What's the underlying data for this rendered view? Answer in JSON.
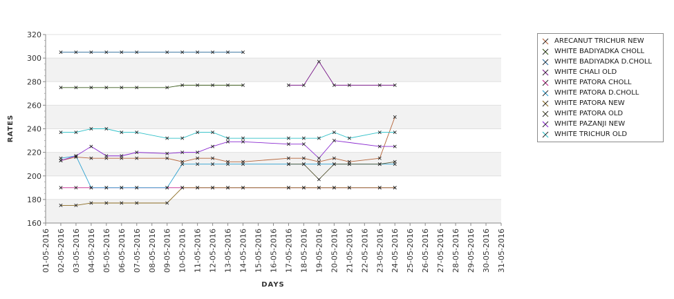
{
  "chart_data": {
    "type": "line",
    "title": "",
    "xlabel": "DAYS",
    "ylabel": "RATES",
    "ylim": [
      160,
      320
    ],
    "yticks": [
      160,
      180,
      200,
      220,
      240,
      260,
      280,
      300,
      320
    ],
    "grid": "horizontal alternating bands",
    "legend_position": "right",
    "categories": [
      "01-05-2016",
      "02-05-2016",
      "03-05-2016",
      "04-05-2016",
      "05-05-2016",
      "06-05-2016",
      "07-05-2016",
      "08-05-2016",
      "09-05-2016",
      "10-05-2016",
      "11-05-2016",
      "12-05-2016",
      "13-05-2016",
      "14-05-2016",
      "15-05-2016",
      "16-05-2016",
      "17-05-2016",
      "18-05-2016",
      "19-05-2016",
      "20-05-2016",
      "21-05-2016",
      "22-05-2016",
      "23-05-2016",
      "24-05-2016",
      "25-05-2016",
      "26-05-2016",
      "27-05-2016",
      "28-05-2016",
      "29-05-2016",
      "30-05-2016",
      "31-05-2016"
    ],
    "series": [
      {
        "name": "ARECANUT TRICHUR NEW",
        "color": "#b5653a",
        "values": [
          null,
          213,
          216,
          215,
          215,
          215,
          215,
          null,
          215,
          212,
          215,
          215,
          212,
          212,
          null,
          null,
          215,
          215,
          212,
          215,
          212,
          null,
          215,
          250,
          null,
          null,
          null,
          null,
          null,
          null,
          null
        ]
      },
      {
        "name": "WHITE BADIYADKA CHOLL",
        "color": "#3a5a1a",
        "values": [
          null,
          275,
          275,
          275,
          275,
          275,
          275,
          null,
          275,
          277,
          277,
          277,
          277,
          277,
          null,
          null,
          null,
          null,
          null,
          null,
          null,
          null,
          null,
          null,
          null,
          null,
          null,
          null,
          null,
          null,
          null
        ]
      },
      {
        "name": "WHITE BADIYADKA D.CHOLL",
        "color": "#2a6a9a",
        "values": [
          null,
          305,
          305,
          305,
          305,
          305,
          305,
          null,
          305,
          305,
          305,
          305,
          305,
          305,
          null,
          null,
          null,
          null,
          null,
          null,
          null,
          null,
          null,
          null,
          null,
          null,
          null,
          null,
          null,
          null,
          null
        ]
      },
      {
        "name": "WHITE CHALI OLD",
        "color": "#7a1a8a",
        "values": [
          null,
          null,
          null,
          null,
          null,
          null,
          null,
          null,
          null,
          null,
          null,
          null,
          null,
          null,
          null,
          null,
          277,
          277,
          297,
          277,
          277,
          null,
          277,
          277,
          null,
          null,
          null,
          null,
          null,
          null,
          null
        ]
      },
      {
        "name": "WHITE PATORA CHOLL",
        "color": "#c0208a",
        "values": [
          null,
          190,
          190,
          190,
          190,
          190,
          190,
          null,
          190,
          190,
          190,
          190,
          190,
          190,
          null,
          null,
          190,
          190,
          190,
          190,
          190,
          null,
          190,
          190,
          null,
          null,
          null,
          null,
          null,
          null,
          null
        ]
      },
      {
        "name": "WHITE PATORA D.CHOLL",
        "color": "#2aa0d0",
        "values": [
          null,
          215,
          217,
          190,
          190,
          190,
          190,
          null,
          190,
          210,
          210,
          210,
          210,
          210,
          null,
          null,
          210,
          210,
          210,
          210,
          210,
          null,
          210,
          210,
          null,
          null,
          null,
          null,
          null,
          null,
          null
        ]
      },
      {
        "name": "WHITE PATORA NEW",
        "color": "#8a6a20",
        "values": [
          null,
          175,
          175,
          177,
          177,
          177,
          177,
          null,
          177,
          190,
          190,
          190,
          190,
          190,
          null,
          null,
          190,
          190,
          190,
          190,
          190,
          null,
          190,
          190,
          null,
          null,
          null,
          null,
          null,
          null,
          null
        ]
      },
      {
        "name": "WHITE PATORA OLD",
        "color": "#555533",
        "values": [
          null,
          null,
          null,
          null,
          null,
          null,
          null,
          null,
          null,
          null,
          null,
          null,
          null,
          null,
          null,
          null,
          210,
          210,
          197,
          210,
          210,
          null,
          210,
          212,
          null,
          null,
          null,
          null,
          null,
          null,
          null
        ]
      },
      {
        "name": "WHITE PAZANJI NEW",
        "color": "#8a2ad0",
        "values": [
          null,
          213,
          217,
          225,
          217,
          217,
          220,
          null,
          219,
          220,
          220,
          225,
          229,
          229,
          null,
          null,
          227,
          227,
          215,
          230,
          null,
          null,
          225,
          225,
          null,
          null,
          null,
          null,
          null,
          null,
          null
        ]
      },
      {
        "name": "WHITE TRICHUR OLD",
        "color": "#30c0c8",
        "values": [
          null,
          237,
          237,
          240,
          240,
          237,
          237,
          null,
          232,
          232,
          237,
          237,
          232,
          232,
          null,
          null,
          232,
          232,
          232,
          237,
          232,
          null,
          237,
          237,
          null,
          null,
          null,
          null,
          null,
          null,
          null
        ]
      }
    ]
  }
}
